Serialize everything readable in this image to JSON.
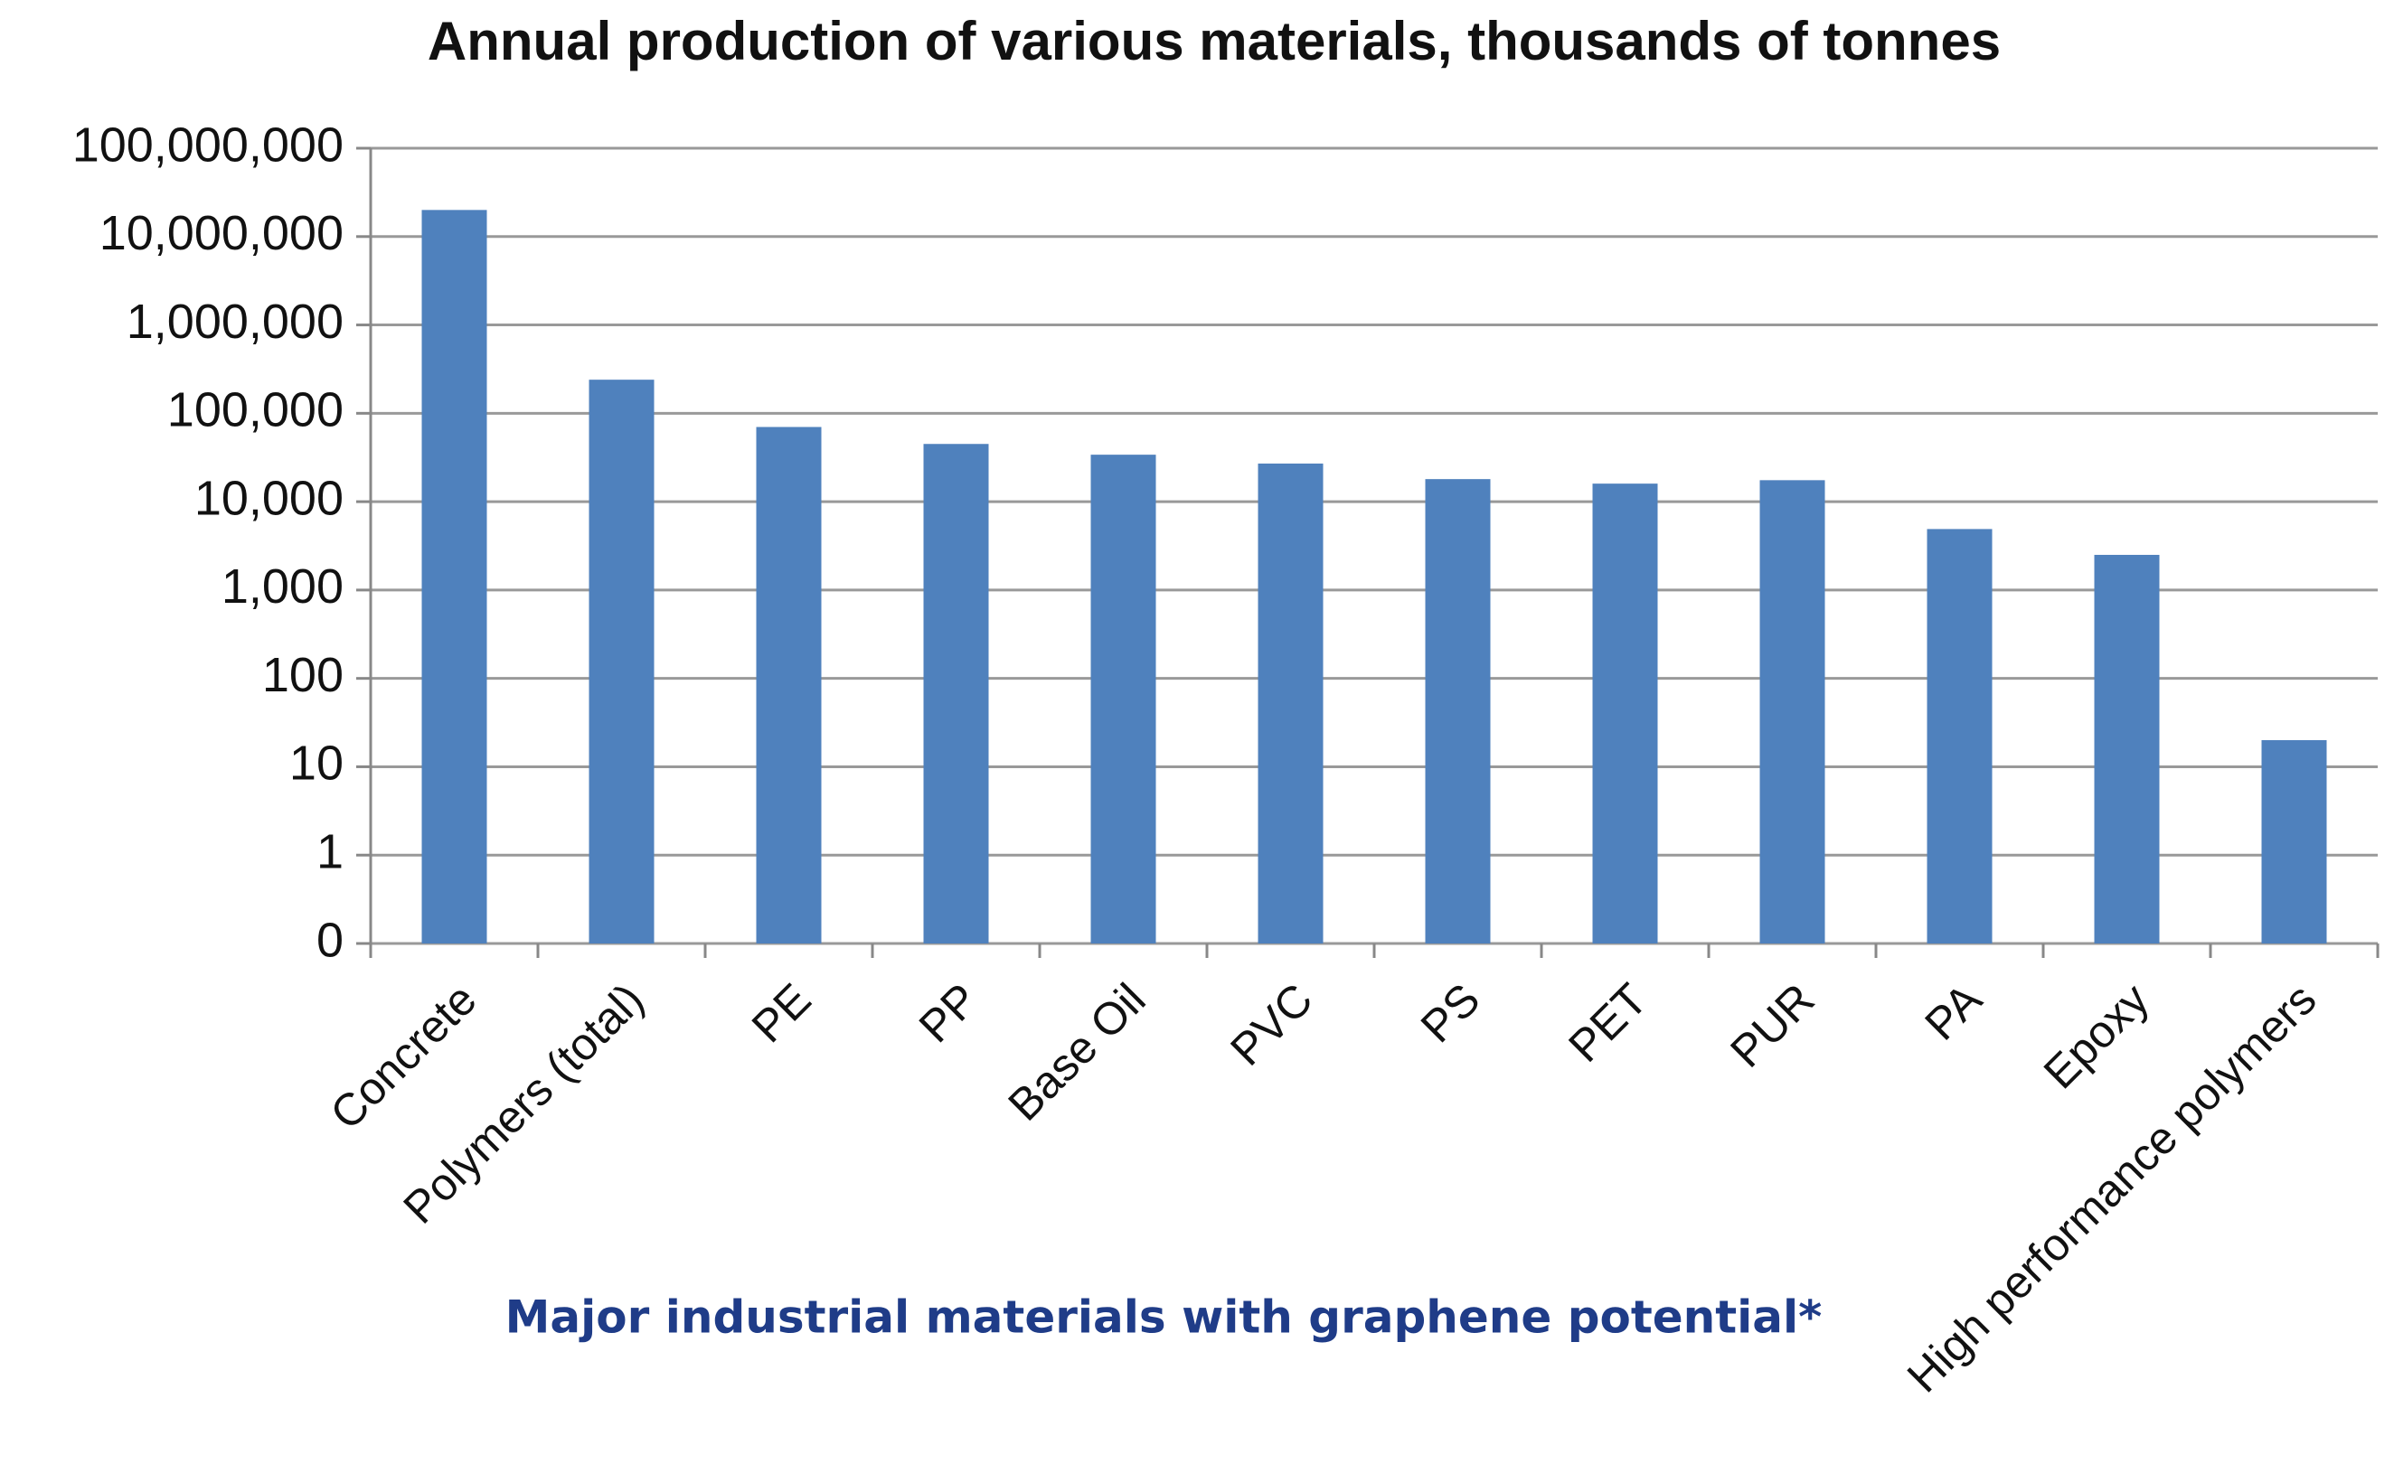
{
  "chart_data": {
    "type": "bar",
    "title": "Annual production of various materials, thousands of tonnes",
    "caption": "Major industrial materials with graphene potential*",
    "categories": [
      "Concrete",
      "Polymers (total)",
      "PE",
      "PP",
      "Base Oil",
      "PVC",
      "PS",
      "PET",
      "PUR",
      "PA",
      "Epoxy",
      "High performance polymers"
    ],
    "values": [
      20000000,
      240000,
      70000,
      45000,
      34000,
      27000,
      18000,
      16000,
      17500,
      4900,
      2500,
      20
    ],
    "color": "#4f81bd",
    "log_scale": true,
    "ylim": [
      0.1,
      100000000
    ],
    "yticks": [
      {
        "value": 0.1,
        "label": "0"
      },
      1,
      10,
      100,
      {
        "value": 1000,
        "label": "1,000"
      },
      {
        "value": 10000,
        "label": "10,000"
      },
      {
        "value": 100000,
        "label": "100,000"
      },
      {
        "value": 1000000,
        "label": "1,000,000"
      },
      {
        "value": 10000000,
        "label": "10,000,000"
      },
      {
        "value": 100000000,
        "label": "100,000,000"
      }
    ],
    "grid": true
  }
}
